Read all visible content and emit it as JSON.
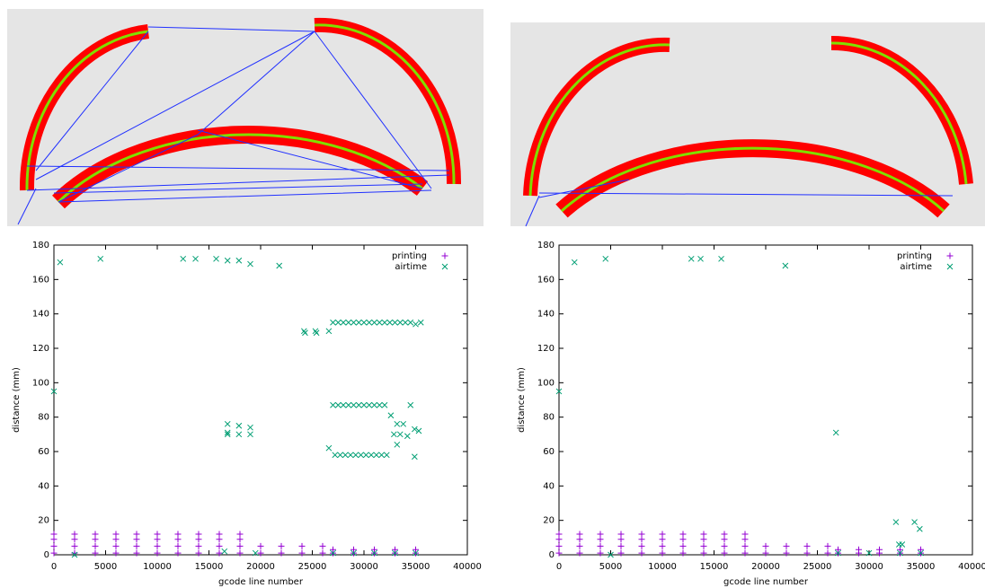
{
  "chart_data": [
    {
      "type": "scatter",
      "x_label": "gcode line number",
      "y_label": "distance (mm)",
      "xlim": [
        0,
        40000
      ],
      "xticks": [
        0,
        5000,
        10000,
        15000,
        20000,
        25000,
        30000,
        35000,
        40000
      ],
      "ylim": [
        0,
        180
      ],
      "yticks": [
        0,
        20,
        40,
        60,
        80,
        100,
        120,
        140,
        160,
        180
      ],
      "legend": "top-right",
      "series": [
        {
          "name": "printing",
          "color": "#9400d3",
          "marker": "plus",
          "x": [
            0,
            0,
            0,
            0,
            2000,
            2000,
            2000,
            2000,
            4000,
            4000,
            4000,
            4000,
            6000,
            6000,
            6000,
            6000,
            8000,
            8000,
            8000,
            8000,
            10000,
            10000,
            10000,
            10000,
            12000,
            12000,
            12000,
            12000,
            14000,
            14000,
            14000,
            14000,
            16000,
            16000,
            16000,
            16000,
            18000,
            18000,
            18000,
            18000,
            20000,
            20000,
            22000,
            22000,
            24000,
            24000,
            26000,
            26000,
            27000,
            27000,
            29000,
            29000,
            31000,
            31000,
            33000,
            33000,
            35000,
            35000
          ],
          "values": [
            12,
            9,
            5,
            1,
            12,
            9,
            5,
            1,
            12,
            9,
            5,
            1,
            12,
            9,
            5,
            1,
            12,
            9,
            5,
            1,
            12,
            9,
            5,
            1,
            12,
            9,
            5,
            1,
            12,
            9,
            5,
            1,
            12,
            9,
            5,
            1,
            12,
            9,
            5,
            1,
            5,
            1,
            5,
            1,
            5,
            1,
            5,
            1,
            3,
            1,
            3,
            1,
            3,
            1,
            3,
            1,
            3,
            1
          ]
        },
        {
          "name": "airtime",
          "color": "#009e73",
          "marker": "cross",
          "x": [
            0,
            600,
            4500,
            12500,
            13700,
            15700,
            16800,
            17900,
            19000,
            21800,
            24200,
            24300,
            25300,
            25400,
            26600,
            27000,
            27500,
            28000,
            28500,
            29000,
            29500,
            30000,
            30500,
            31000,
            31500,
            32000,
            32500,
            33000,
            33500,
            34000,
            34500,
            35000,
            35500,
            27000,
            27500,
            28000,
            28500,
            29000,
            29500,
            30000,
            30500,
            31000,
            31500,
            32000,
            27200,
            27700,
            28200,
            28700,
            29200,
            29700,
            30200,
            30700,
            31200,
            31700,
            32200,
            16800,
            16800,
            16800,
            17900,
            17900,
            19000,
            19000,
            26600,
            32600,
            32900,
            33200,
            33200,
            33500,
            33800,
            34200,
            34500,
            34900,
            34900,
            35300,
            2000,
            16500,
            19500,
            27000,
            29000,
            31000,
            33000,
            35000
          ],
          "values": [
            95,
            170,
            172,
            172,
            172,
            172,
            171,
            171,
            169,
            168,
            130,
            129,
            130,
            129,
            130,
            135,
            135,
            135,
            135,
            135,
            135,
            135,
            135,
            135,
            135,
            135,
            135,
            135,
            135,
            135,
            135,
            134,
            135,
            87,
            87,
            87,
            87,
            87,
            87,
            87,
            87,
            87,
            87,
            87,
            58,
            58,
            58,
            58,
            58,
            58,
            58,
            58,
            58,
            58,
            58,
            76,
            70,
            71,
            75,
            70,
            74,
            70,
            62,
            81,
            70,
            64,
            76,
            70,
            76,
            69,
            87,
            57,
            73,
            72,
            0,
            2,
            1,
            1,
            1,
            1,
            1,
            1
          ]
        }
      ]
    },
    {
      "type": "scatter",
      "x_label": "gcode line number",
      "y_label": "distance (mm)",
      "xlim": [
        0,
        40000
      ],
      "xticks": [
        0,
        5000,
        10000,
        15000,
        20000,
        25000,
        30000,
        35000,
        40000
      ],
      "ylim": [
        0,
        180
      ],
      "yticks": [
        0,
        20,
        40,
        60,
        80,
        100,
        120,
        140,
        160,
        180
      ],
      "legend": "top-right",
      "series": [
        {
          "name": "printing",
          "color": "#9400d3",
          "marker": "plus",
          "x": [
            0,
            0,
            0,
            0,
            2000,
            2000,
            2000,
            2000,
            4000,
            4000,
            4000,
            4000,
            6000,
            6000,
            6000,
            6000,
            8000,
            8000,
            8000,
            8000,
            10000,
            10000,
            10000,
            10000,
            12000,
            12000,
            12000,
            12000,
            14000,
            14000,
            14000,
            14000,
            16000,
            16000,
            16000,
            16000,
            18000,
            18000,
            18000,
            18000,
            20000,
            20000,
            22000,
            22000,
            24000,
            24000,
            26000,
            26000,
            27000,
            27000,
            29000,
            29000,
            31000,
            31000,
            33000,
            33000,
            35000,
            35000
          ],
          "values": [
            12,
            9,
            5,
            1,
            12,
            9,
            5,
            1,
            12,
            9,
            5,
            1,
            12,
            9,
            5,
            1,
            12,
            9,
            5,
            1,
            12,
            9,
            5,
            1,
            12,
            9,
            5,
            1,
            12,
            9,
            5,
            1,
            12,
            9,
            5,
            1,
            12,
            9,
            5,
            1,
            5,
            1,
            5,
            1,
            5,
            1,
            5,
            1,
            3,
            1,
            3,
            1,
            3,
            1,
            3,
            1,
            3,
            1
          ]
        },
        {
          "name": "airtime",
          "color": "#009e73",
          "marker": "cross",
          "x": [
            0,
            1500,
            4500,
            12800,
            13700,
            15700,
            21900,
            26800,
            32600,
            32900,
            33200,
            34400,
            34900,
            5000,
            27000,
            30000,
            33000,
            35000
          ],
          "values": [
            95,
            170,
            172,
            172,
            172,
            172,
            168,
            71,
            19,
            6,
            6,
            19,
            15,
            0,
            1,
            1,
            1,
            1
          ]
        }
      ]
    }
  ]
}
